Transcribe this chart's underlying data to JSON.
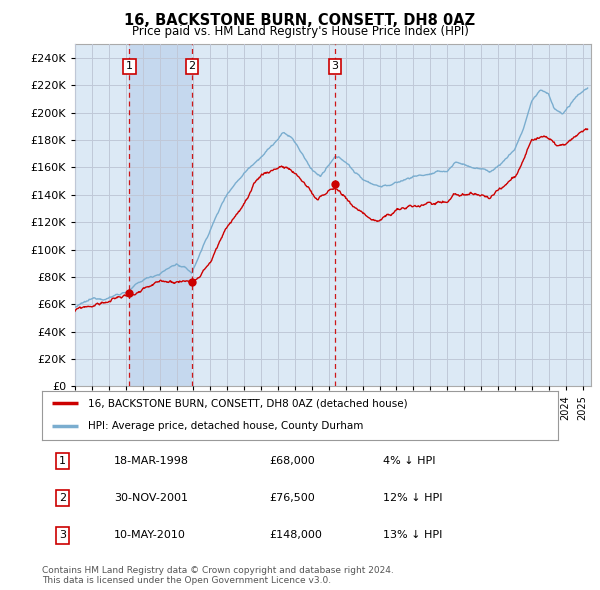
{
  "title": "16, BACKSTONE BURN, CONSETT, DH8 0AZ",
  "subtitle": "Price paid vs. HM Land Registry's House Price Index (HPI)",
  "ylim": [
    0,
    250000
  ],
  "yticks": [
    0,
    20000,
    40000,
    60000,
    80000,
    100000,
    120000,
    140000,
    160000,
    180000,
    200000,
    220000,
    240000
  ],
  "xlim_start": 1995.0,
  "xlim_end": 2025.5,
  "transactions": [
    {
      "num": 1,
      "date": "18-MAR-1998",
      "year": 1998.21,
      "price": 68000,
      "pct": "4%",
      "dir": "↓"
    },
    {
      "num": 2,
      "date": "30-NOV-2001",
      "year": 2001.92,
      "price": 76500,
      "pct": "12%",
      "dir": "↓"
    },
    {
      "num": 3,
      "date": "10-MAY-2010",
      "year": 2010.37,
      "price": 148000,
      "pct": "13%",
      "dir": "↓"
    }
  ],
  "legend_property": "16, BACKSTONE BURN, CONSETT, DH8 0AZ (detached house)",
  "legend_hpi": "HPI: Average price, detached house, County Durham",
  "footnote": "Contains HM Land Registry data © Crown copyright and database right 2024.\nThis data is licensed under the Open Government Licence v3.0.",
  "property_color": "#cc0000",
  "hpi_color": "#7aadcf",
  "bg_color": "#dce9f5",
  "shade_color": "#c5d8ee",
  "plot_bg": "#ffffff",
  "grid_color": "#c0c8d8",
  "vline_color": "#cc0000",
  "box_color": "#cc0000",
  "hpi_seed": 12345,
  "prop_seed": 99
}
